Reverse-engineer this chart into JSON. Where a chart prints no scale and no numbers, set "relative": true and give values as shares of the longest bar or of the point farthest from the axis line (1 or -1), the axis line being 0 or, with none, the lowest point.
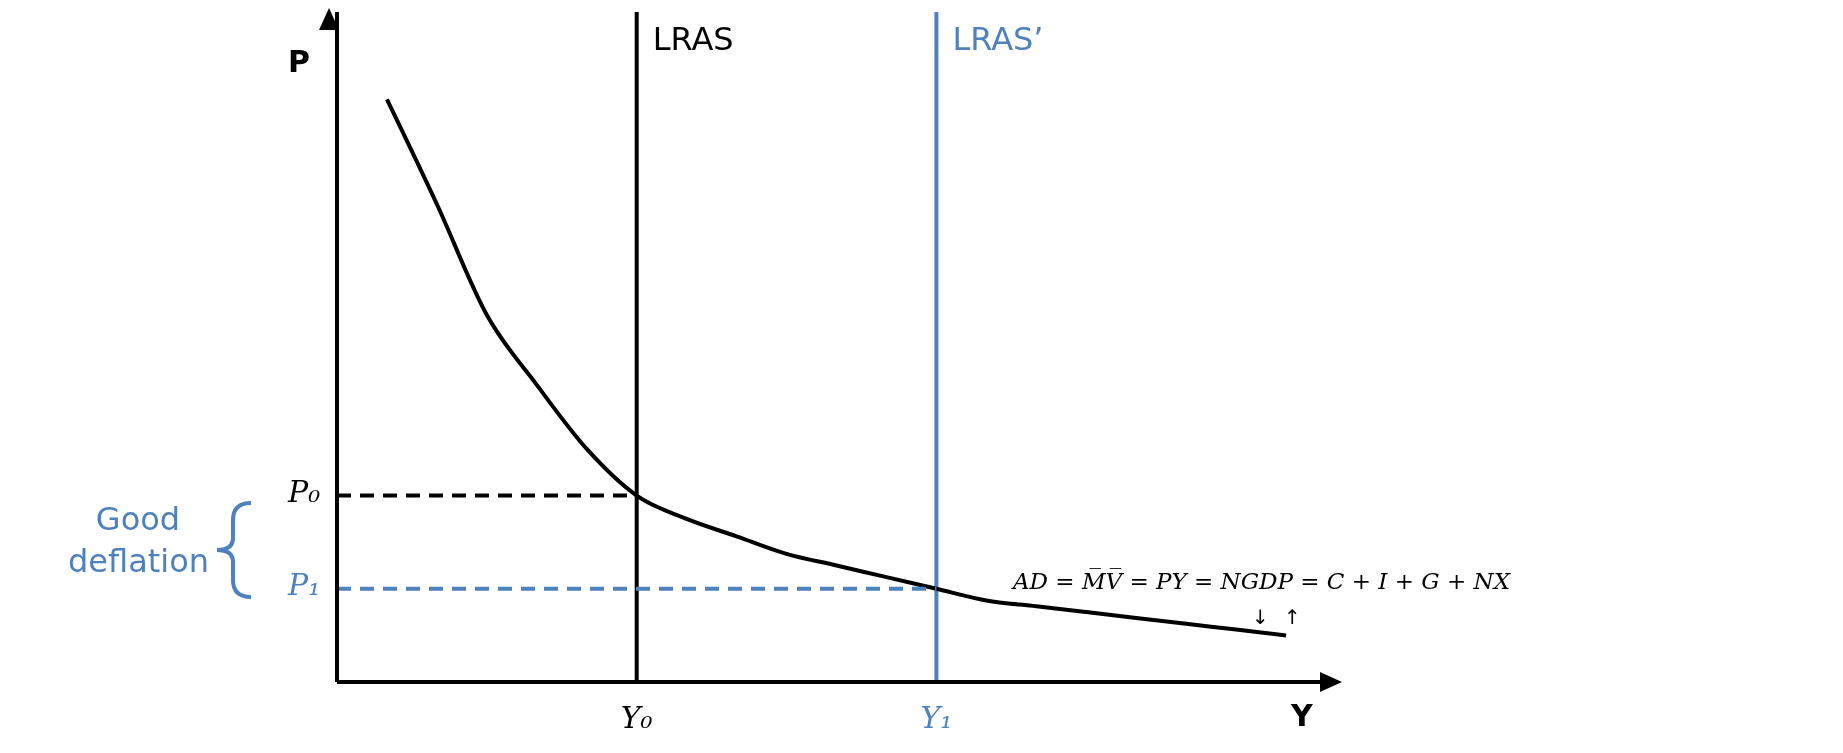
{
  "chart_data": {
    "type": "line",
    "relative": true,
    "xlabel": "Y",
    "ylabel": "P",
    "categories": [
      null,
      null,
      null,
      null,
      null,
      null,
      "Y₀",
      null,
      null,
      null,
      null,
      null,
      "Y₁",
      null,
      null,
      null,
      null,
      null,
      null,
      null,
      null
    ],
    "grid": false,
    "legend": false,
    "marker": "none",
    "series": [
      {
        "color": "#000000",
        "line_style": "solid",
        "values": [
          null,
          1,
          0.82,
          0.63,
          0.51,
          0.4,
          0.32,
          0.28,
          0.25,
          0.22,
          0.2,
          0.18,
          0.16,
          0.14,
          0.13,
          0.12,
          0.11,
          0.1,
          0.09,
          0.08,
          null
        ]
      },
      {
        "color": "#000000",
        "line_style": "dashed",
        "values": [
          0.32,
          0.32,
          0.32,
          0.32,
          0.32,
          0.32,
          0.32,
          null,
          null,
          null,
          null,
          null,
          null,
          null,
          null,
          null,
          null,
          null,
          null,
          null,
          null
        ]
      },
      {
        "color": "#4f81bd",
        "line_style": "dashed",
        "values": [
          0.16,
          0.16,
          0.16,
          0.16,
          0.16,
          0.16,
          0.16,
          0.16,
          0.16,
          0.16,
          0.16,
          0.16,
          0.16,
          null,
          null,
          null,
          null,
          null,
          null,
          null,
          null
        ]
      }
    ],
    "ref_lines": [
      {
        "axis": "x",
        "value": "Y₀",
        "label": "LRAS",
        "color": "#000000"
      },
      {
        "axis": "x",
        "value": "Y₁",
        "label": "LRAS’",
        "color": "#4f81bd"
      }
    ],
    "annotations": [
      "P₀",
      "P₁",
      "Good deflation",
      "AD = M̅V̅ = PY = NGDP = C + I + G + NX",
      "↓",
      "↑"
    ]
  }
}
